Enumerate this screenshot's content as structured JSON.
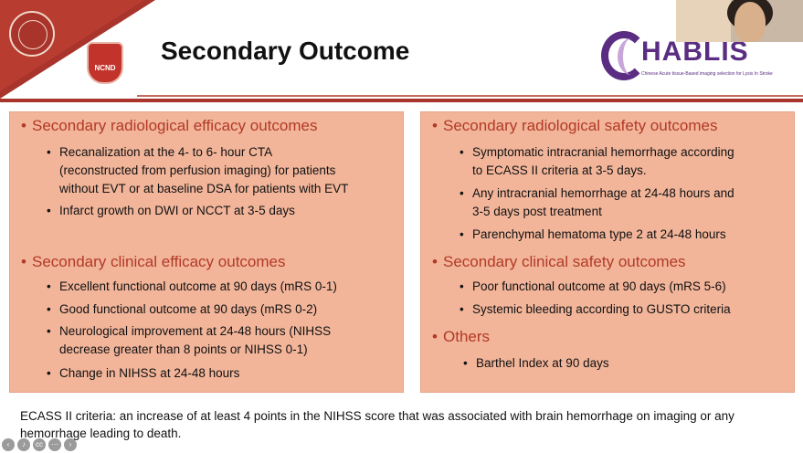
{
  "slide": {
    "title": "Secondary Outcome",
    "ncnd_logo_text": "NCND",
    "logo": {
      "name": "CHABLIS",
      "word": "HABLIS",
      "tagline": "Chinese Acute tissue-Based imaging selection for Lysis In Stroke"
    },
    "left_panel": {
      "sections": [
        {
          "heading": "Secondary radiological efficacy outcomes",
          "items": [
            [
              "Recanalization at the 4- to 6- hour CTA",
              "(reconstructed from perfusion imaging) for patients",
              "without EVT or at baseline DSA for patients with EVT"
            ],
            [
              "Infarct growth on DWI or NCCT at 3-5 days"
            ]
          ]
        },
        {
          "heading": "Secondary clinical efficacy outcomes",
          "items": [
            [
              "Excellent functional outcome at 90 days (mRS 0-1)"
            ],
            [
              "Good functional outcome at 90 days (mRS 0-2)"
            ],
            [
              "Neurological improvement at 24-48 hours (NIHSS",
              "decrease greater than 8 points or NIHSS 0-1)"
            ],
            [
              "Change in NIHSS at 24-48 hours"
            ]
          ]
        }
      ]
    },
    "right_panel": {
      "sections": [
        {
          "heading": "Secondary radiological safety outcomes",
          "items": [
            [
              "Symptomatic intracranial hemorrhage according",
              "to ECASS II criteria at 3-5 days."
            ],
            [
              "Any intracranial hemorrhage at 24-48 hours and",
              "3-5 days post treatment"
            ],
            [
              "Parenchymal hematoma type 2 at 24-48 hours"
            ]
          ]
        },
        {
          "heading": "Secondary clinical safety outcomes",
          "items": [
            [
              "Poor functional outcome at 90 days (mRS 5-6)"
            ],
            [
              "Systemic bleeding according to GUSTO criteria"
            ]
          ]
        },
        {
          "heading": "Others",
          "items": [
            [
              "Barthel Index at 90 days"
            ]
          ]
        }
      ]
    },
    "footnote": "ECASS II criteria: an increase of at least 4 points in the NIHSS score that was associated with brain hemorrhage on imaging or any hemorrhage leading to death."
  },
  "player_controls": [
    "back-icon",
    "volume-icon",
    "captions-icon",
    "more-icon",
    "forward-icon"
  ],
  "colors": {
    "accent_red": "#a8342b",
    "heading_red": "#b23a26",
    "panel_fill": "#f2b59a",
    "logo_purple": "#5a2d82"
  }
}
